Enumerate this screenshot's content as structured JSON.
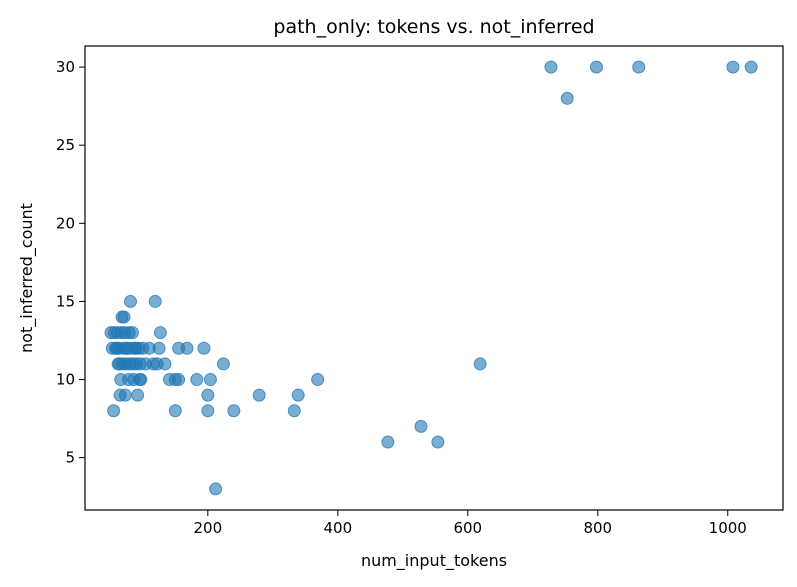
{
  "chart_data": {
    "type": "scatter",
    "title": "path_only: tokens vs. not_inferred",
    "xlabel": "num_input_tokens",
    "ylabel": "not_inferred_count",
    "xlim": [
      11,
      1085
    ],
    "ylim": [
      1.65,
      31.35
    ],
    "xticks": [
      200,
      400,
      600,
      800,
      1000
    ],
    "yticks": [
      5,
      10,
      15,
      20,
      25,
      30
    ],
    "grid": false,
    "marker_color": "#1f77b4",
    "marker_alpha": 0.6,
    "series": [
      {
        "points": [
          [
            728,
            30
          ],
          [
            798,
            30
          ],
          [
            863,
            30
          ],
          [
            1008,
            30
          ],
          [
            1036,
            30
          ],
          [
            753,
            28
          ],
          [
            619,
            11
          ],
          [
            477,
            6
          ],
          [
            528,
            7
          ],
          [
            554,
            6
          ],
          [
            369,
            10
          ],
          [
            339,
            9
          ],
          [
            333,
            8
          ],
          [
            279,
            9
          ],
          [
            240,
            8
          ],
          [
            224,
            11
          ],
          [
            212,
            3
          ],
          [
            204,
            10
          ],
          [
            200,
            9
          ],
          [
            200,
            8
          ],
          [
            194,
            12
          ],
          [
            183,
            10
          ],
          [
            168,
            12
          ],
          [
            155,
            12
          ],
          [
            155,
            10
          ],
          [
            150,
            10
          ],
          [
            150,
            8
          ],
          [
            141,
            10
          ],
          [
            134,
            11
          ],
          [
            127,
            13
          ],
          [
            125,
            12
          ],
          [
            122,
            11
          ],
          [
            119,
            15
          ],
          [
            116,
            11
          ],
          [
            110,
            12
          ],
          [
            104,
            11
          ],
          [
            100,
            12
          ],
          [
            97,
            10
          ],
          [
            96,
            11
          ],
          [
            94,
            12
          ],
          [
            92,
            9
          ],
          [
            90,
            11
          ],
          [
            88,
            12
          ],
          [
            86,
            10
          ],
          [
            84,
            13
          ],
          [
            82,
            12
          ],
          [
            81,
            15
          ],
          [
            80,
            11
          ],
          [
            78,
            10
          ],
          [
            76,
            12
          ],
          [
            74,
            11
          ],
          [
            73,
            9
          ],
          [
            72,
            13
          ],
          [
            71,
            14
          ],
          [
            70,
            12
          ],
          [
            69,
            11
          ],
          [
            68,
            14
          ],
          [
            67,
            13
          ],
          [
            66,
            10
          ],
          [
            65,
            9
          ],
          [
            64,
            11
          ],
          [
            63,
            12
          ],
          [
            61,
            13
          ],
          [
            60,
            12
          ],
          [
            58,
            12
          ],
          [
            56,
            13
          ],
          [
            55,
            8
          ],
          [
            53,
            12
          ],
          [
            51,
            13
          ],
          [
            85,
            11
          ],
          [
            75,
            12
          ],
          [
            62,
            11
          ],
          [
            79,
            13
          ],
          [
            89,
            12
          ],
          [
            95,
            10
          ]
        ]
      }
    ]
  }
}
